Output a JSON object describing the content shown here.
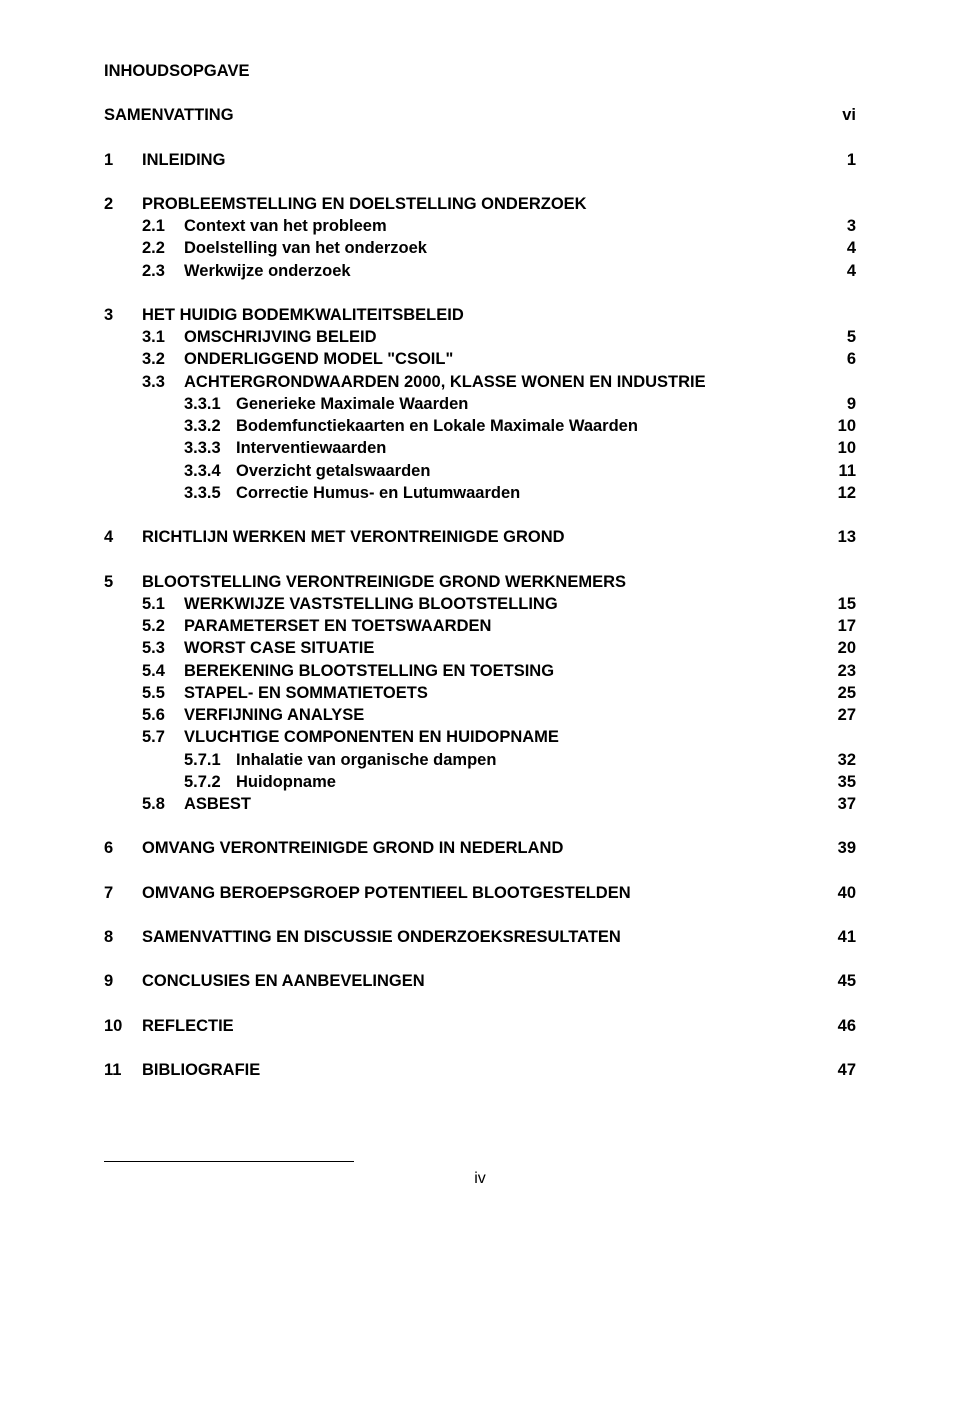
{
  "title": "INHOUDSOPGAVE",
  "sections": [
    {
      "type": "row",
      "level": 0,
      "num": "",
      "text": "SAMENVATTING",
      "page": "vi",
      "bold": true,
      "spaceAfter": true
    },
    {
      "type": "row",
      "level": 1,
      "num": "1",
      "text": "INLEIDING",
      "page": "1",
      "bold": true,
      "spaceAfter": true
    },
    {
      "type": "row",
      "level": 1,
      "num": "2",
      "text": "PROBLEEMSTELLING EN DOELSTELLING ONDERZOEK",
      "page": "",
      "bold": true
    },
    {
      "type": "row",
      "level": 2,
      "num": "2.1",
      "text": "Context van het probleem",
      "page": "3",
      "bold": true
    },
    {
      "type": "row",
      "level": 2,
      "num": "2.2",
      "text": "Doelstelling van het onderzoek",
      "page": "4",
      "bold": true
    },
    {
      "type": "row",
      "level": 2,
      "num": "2.3",
      "text": "Werkwijze onderzoek",
      "page": "4",
      "bold": true,
      "spaceAfter": true
    },
    {
      "type": "row",
      "level": 1,
      "num": "3",
      "text": "HET HUIDIG BODEMKWALITEITSBELEID",
      "page": "",
      "bold": true
    },
    {
      "type": "row",
      "level": 2,
      "num": "3.1",
      "text": "OMSCHRIJVING BELEID",
      "page": "5",
      "bold": true
    },
    {
      "type": "row",
      "level": 2,
      "num": "3.2",
      "text": "ONDERLIGGEND MODEL \"CSOIL\"",
      "page": "6",
      "bold": true
    },
    {
      "type": "row",
      "level": 2,
      "num": "3.3",
      "text": "ACHTERGRONDWAARDEN 2000, KLASSE WONEN EN INDUSTRIE",
      "page": "",
      "bold": true
    },
    {
      "type": "row",
      "level": 3,
      "num": "3.3.1",
      "text": "Generieke Maximale Waarden",
      "page": "9",
      "bold": true
    },
    {
      "type": "row",
      "level": 3,
      "num": "3.3.2",
      "text": "Bodemfunctiekaarten en Lokale Maximale Waarden",
      "page": "10",
      "bold": true
    },
    {
      "type": "row",
      "level": 3,
      "num": "3.3.3",
      "text": "Interventiewaarden",
      "page": "10",
      "bold": true
    },
    {
      "type": "row",
      "level": 3,
      "num": "3.3.4",
      "text": "Overzicht getalswaarden",
      "page": "11",
      "bold": true
    },
    {
      "type": "row",
      "level": 3,
      "num": "3.3.5",
      "text": "Correctie Humus- en Lutumwaarden",
      "page": "12",
      "bold": true,
      "spaceAfter": true
    },
    {
      "type": "row",
      "level": 1,
      "num": "4",
      "text": "RICHTLIJN WERKEN MET VERONTREINIGDE GROND",
      "page": "13",
      "bold": true,
      "spaceAfter": true
    },
    {
      "type": "row",
      "level": 1,
      "num": "5",
      "text": "BLOOTSTELLING VERONTREINIGDE GROND WERKNEMERS",
      "page": "",
      "bold": true
    },
    {
      "type": "row",
      "level": 2,
      "num": "5.1",
      "text": "WERKWIJZE VASTSTELLING BLOOTSTELLING",
      "page": "15",
      "bold": true
    },
    {
      "type": "row",
      "level": 2,
      "num": "5.2",
      "text": "PARAMETERSET EN TOETSWAARDEN",
      "page": "17",
      "bold": true
    },
    {
      "type": "row",
      "level": 2,
      "num": "5.3",
      "text": "WORST CASE SITUATIE",
      "page": "20",
      "bold": true
    },
    {
      "type": "row",
      "level": 2,
      "num": "5.4",
      "text": "BEREKENING BLOOTSTELLING EN TOETSING",
      "page": "23",
      "bold": true
    },
    {
      "type": "row",
      "level": 2,
      "num": "5.5",
      "text": "STAPEL- EN SOMMATIETOETS",
      "page": "25",
      "bold": true
    },
    {
      "type": "row",
      "level": 2,
      "num": "5.6",
      "text": "VERFIJNING ANALYSE",
      "page": "27",
      "bold": true
    },
    {
      "type": "row",
      "level": 2,
      "num": "5.7",
      "text": "VLUCHTIGE COMPONENTEN EN HUIDOPNAME",
      "page": "",
      "bold": true
    },
    {
      "type": "row",
      "level": 3,
      "num": "5.7.1",
      "text": "Inhalatie van organische dampen",
      "page": "32",
      "bold": true
    },
    {
      "type": "row",
      "level": 3,
      "num": "5.7.2",
      "text": "Huidopname",
      "page": "35",
      "bold": true
    },
    {
      "type": "row",
      "level": 2,
      "num": "5.8",
      "text": "ASBEST",
      "page": "37",
      "bold": true,
      "spaceAfter": true
    },
    {
      "type": "row",
      "level": 1,
      "num": "6",
      "text": "OMVANG VERONTREINIGDE GROND IN NEDERLAND",
      "page": "39",
      "bold": true,
      "spaceAfter": true
    },
    {
      "type": "row",
      "level": 1,
      "num": "7",
      "text": "OMVANG BEROEPSGROEP POTENTIEEL BLOOTGESTELDEN",
      "page": "40",
      "bold": true,
      "spaceAfter": true
    },
    {
      "type": "row",
      "level": 1,
      "num": "8",
      "text": "SAMENVATTING EN DISCUSSIE ONDERZOEKSRESULTATEN",
      "page": "41",
      "bold": true,
      "spaceAfter": true
    },
    {
      "type": "row",
      "level": 1,
      "num": "9",
      "text": "CONCLUSIES EN AANBEVELINGEN",
      "page": "45",
      "bold": true,
      "spaceAfter": true
    },
    {
      "type": "row",
      "level": 1,
      "num": "10",
      "text": "REFLECTIE",
      "page": "46",
      "bold": true,
      "spaceAfter": true
    },
    {
      "type": "row",
      "level": 1,
      "num": "11",
      "text": "BIBLIOGRAFIE",
      "page": "47",
      "bold": true
    }
  ],
  "footerPage": "iv"
}
